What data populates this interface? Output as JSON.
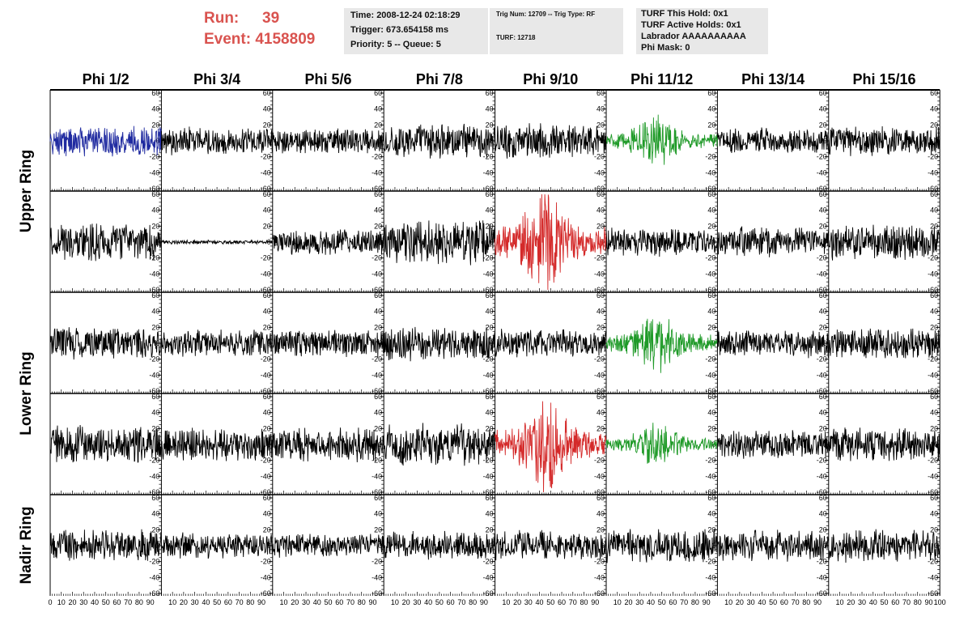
{
  "header": {
    "run_label": "Run:",
    "run_value": "39",
    "event_label": "Event:",
    "event_value": "4158809",
    "info_block_1": [
      "Time: 2008-12-24 02:18:29",
      "Trigger: 673.654158 ms",
      "Priority: 5 -- Queue: 5"
    ],
    "info_block_2": [
      "Trig Num: 12709 -- Trig Type: RF",
      "TURF: 12718"
    ],
    "info_block_3": [
      "TURF This Hold: 0x1",
      "TURF Active Holds: 0x1",
      "Labrador AAAAAAAAAA",
      "Phi Mask: 0"
    ]
  },
  "chart_data": {
    "type": "line",
    "columns": [
      "Phi 1/2",
      "Phi 3/4",
      "Phi 5/6",
      "Phi 7/8",
      "Phi 9/10",
      "Phi 11/12",
      "Phi 13/14",
      "Phi 15/16"
    ],
    "ring_labels": [
      {
        "label": "Upper Ring",
        "rows": [
          0,
          1
        ]
      },
      {
        "label": "Lower Ring",
        "rows": [
          2,
          3
        ]
      },
      {
        "label": "Nadir Ring",
        "rows": [
          4,
          4
        ]
      }
    ],
    "xlim": [
      0,
      100
    ],
    "ylim": [
      -60,
      60
    ],
    "x_ticks": [
      0,
      10,
      20,
      30,
      40,
      50,
      60,
      70,
      80,
      90,
      100
    ],
    "x_tick_labels_shown": [
      "0",
      "10",
      "20",
      "30",
      "40",
      "50",
      "60",
      "70",
      "80",
      "90",
      "100"
    ],
    "y_ticks": [
      -60,
      -40,
      -20,
      0,
      20,
      40,
      60
    ],
    "grid": false,
    "colors": {
      "black": "#000000",
      "blue": "#1f2aa0",
      "red": "#d42a2a",
      "green": "#1f9a28"
    },
    "panels": [
      [
        {
          "color": "blue",
          "amp": 16,
          "env": "flat"
        },
        {
          "color": "black",
          "amp": 14,
          "env": "flat"
        },
        {
          "color": "black",
          "amp": 13,
          "env": "flat"
        },
        {
          "color": "black",
          "amp": 17,
          "env": "flat"
        },
        {
          "color": "black",
          "amp": 18,
          "env": "flat"
        },
        {
          "color": "green",
          "amp": 22,
          "env": "pulse"
        },
        {
          "color": "black",
          "amp": 13,
          "env": "flat"
        },
        {
          "color": "black",
          "amp": 15,
          "env": "flat"
        }
      ],
      [
        {
          "color": "black",
          "amp": 19,
          "env": "flat"
        },
        {
          "color": "black",
          "amp": 2,
          "env": "flat"
        },
        {
          "color": "black",
          "amp": 13,
          "env": "flat"
        },
        {
          "color": "black",
          "amp": 22,
          "env": "flat"
        },
        {
          "color": "red",
          "amp": 45,
          "env": "pulse"
        },
        {
          "color": "black",
          "amp": 14,
          "env": "flat"
        },
        {
          "color": "black",
          "amp": 15,
          "env": "flat"
        },
        {
          "color": "black",
          "amp": 18,
          "env": "flat"
        }
      ],
      [
        {
          "color": "black",
          "amp": 16,
          "env": "flat"
        },
        {
          "color": "black",
          "amp": 14,
          "env": "flat"
        },
        {
          "color": "black",
          "amp": 14,
          "env": "flat"
        },
        {
          "color": "black",
          "amp": 18,
          "env": "flat"
        },
        {
          "color": "black",
          "amp": 14,
          "env": "flat"
        },
        {
          "color": "green",
          "amp": 25,
          "env": "pulse"
        },
        {
          "color": "black",
          "amp": 14,
          "env": "flat"
        },
        {
          "color": "black",
          "amp": 16,
          "env": "flat"
        }
      ],
      [
        {
          "color": "black",
          "amp": 19,
          "env": "flat"
        },
        {
          "color": "black",
          "amp": 17,
          "env": "flat"
        },
        {
          "color": "black",
          "amp": 17,
          "env": "flat"
        },
        {
          "color": "black",
          "amp": 21,
          "env": "flat"
        },
        {
          "color": "red",
          "amp": 40,
          "env": "pulse"
        },
        {
          "color": "green",
          "amp": 18,
          "env": "pulse"
        },
        {
          "color": "black",
          "amp": 14,
          "env": "flat"
        },
        {
          "color": "black",
          "amp": 17,
          "env": "flat"
        }
      ],
      [
        {
          "color": "black",
          "amp": 16,
          "env": "flat"
        },
        {
          "color": "black",
          "amp": 13,
          "env": "flat"
        },
        {
          "color": "black",
          "amp": 12,
          "env": "flat"
        },
        {
          "color": "black",
          "amp": 14,
          "env": "flat"
        },
        {
          "color": "black",
          "amp": 15,
          "env": "flat"
        },
        {
          "color": "black",
          "amp": 17,
          "env": "flat"
        },
        {
          "color": "black",
          "amp": 16,
          "env": "flat"
        },
        {
          "color": "black",
          "amp": 17,
          "env": "flat"
        }
      ]
    ]
  }
}
